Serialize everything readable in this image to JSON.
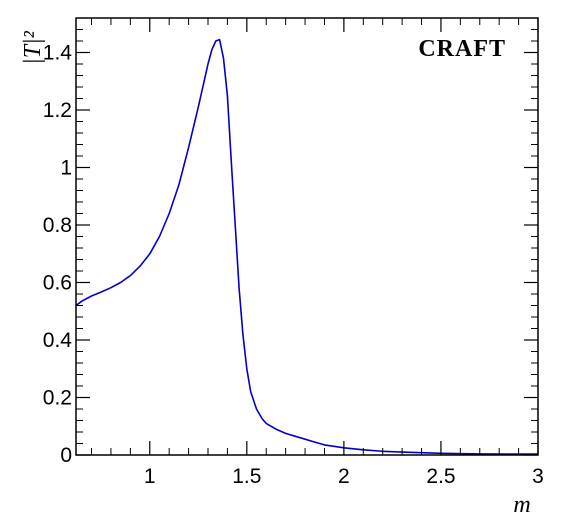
{
  "chart_data": {
    "type": "line",
    "xlabel": "m",
    "ylabel": "|T|²",
    "annotation": "CRAFT",
    "xlim": [
      0.62,
      3.0
    ],
    "ylim": [
      0,
      1.52
    ],
    "grid": false,
    "x_ticks": [
      1,
      1.5,
      2,
      2.5,
      3
    ],
    "x_tick_labels": [
      "1",
      "1.5",
      "2",
      "2.5",
      "3"
    ],
    "y_ticks": [
      0,
      0.2,
      0.4,
      0.6,
      0.8,
      1,
      1.2,
      1.4
    ],
    "y_tick_labels": [
      "0",
      "0.2",
      "0.4",
      "0.6",
      "0.8",
      "1",
      "1.2",
      "1.4"
    ],
    "line_color": "#0000cc",
    "series": [
      {
        "x": [
          0.62,
          0.65,
          0.7,
          0.75,
          0.8,
          0.85,
          0.9,
          0.95,
          1.0,
          1.05,
          1.1,
          1.15,
          1.2,
          1.25,
          1.28,
          1.3,
          1.32,
          1.34,
          1.36,
          1.38,
          1.4,
          1.42,
          1.44,
          1.46,
          1.48,
          1.5,
          1.52,
          1.55,
          1.58,
          1.6,
          1.65,
          1.7,
          1.75,
          1.8,
          1.85,
          1.9,
          2.0,
          2.1,
          2.2,
          2.3,
          2.5,
          2.7,
          3.0
        ],
        "y": [
          0.52,
          0.535,
          0.553,
          0.567,
          0.582,
          0.6,
          0.624,
          0.657,
          0.7,
          0.76,
          0.84,
          0.94,
          1.07,
          1.21,
          1.3,
          1.36,
          1.41,
          1.44,
          1.445,
          1.38,
          1.25,
          1.02,
          0.8,
          0.58,
          0.42,
          0.3,
          0.22,
          0.16,
          0.125,
          0.11,
          0.09,
          0.075,
          0.065,
          0.055,
          0.045,
          0.035,
          0.025,
          0.018,
          0.013,
          0.01,
          0.006,
          0.004,
          0.003
        ]
      }
    ]
  }
}
